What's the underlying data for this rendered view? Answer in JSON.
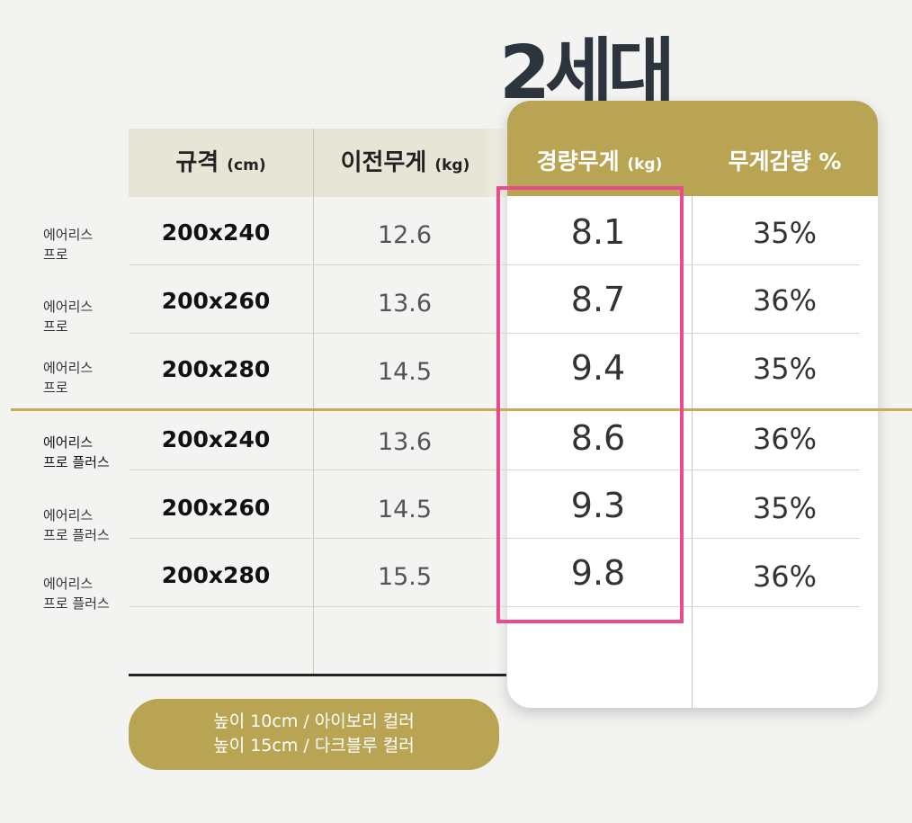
{
  "title": "2세대",
  "headers": {
    "size": "규격",
    "size_unit": "(cm)",
    "prev_weight": "이전무게",
    "prev_unit": "(kg)",
    "light_weight": "경량무게",
    "light_unit": "(kg)",
    "reduction": "무게감량 %"
  },
  "rows": [
    {
      "name_1": "에어리스",
      "name_2": "프로",
      "size": "200x240",
      "prev": "12.6",
      "light": "8.1",
      "pct": "35%"
    },
    {
      "name_1": "에어리스",
      "name_2": "프로",
      "size": "200x260",
      "prev": "13.6",
      "light": "8.7",
      "pct": "36%"
    },
    {
      "name_1": "에어리스",
      "name_2": "프로",
      "size": "200x280",
      "prev": "14.5",
      "light": "9.4",
      "pct": "35%"
    },
    {
      "name_1": "에어리스",
      "name_2": "프로 플러스",
      "size": "200x240",
      "prev": "13.6",
      "light": "8.6",
      "pct": "36%"
    },
    {
      "name_1": "에어리스",
      "name_2": "프로 플러스",
      "size": "200x260",
      "prev": "14.5",
      "light": "9.3",
      "pct": "35%"
    },
    {
      "name_1": "에어리스",
      "name_2": "프로 플러스",
      "size": "200x280",
      "prev": "15.5",
      "light": "9.8",
      "pct": "36%"
    }
  ],
  "note": {
    "line_1": "높이 10cm / 아이보리 컬러",
    "line_2": "높이 15cm / 다크블루 컬러"
  },
  "colors": {
    "gold": "#b8a453",
    "highlight": "#ea4a8e",
    "header_bg": "#e7e6d6"
  }
}
